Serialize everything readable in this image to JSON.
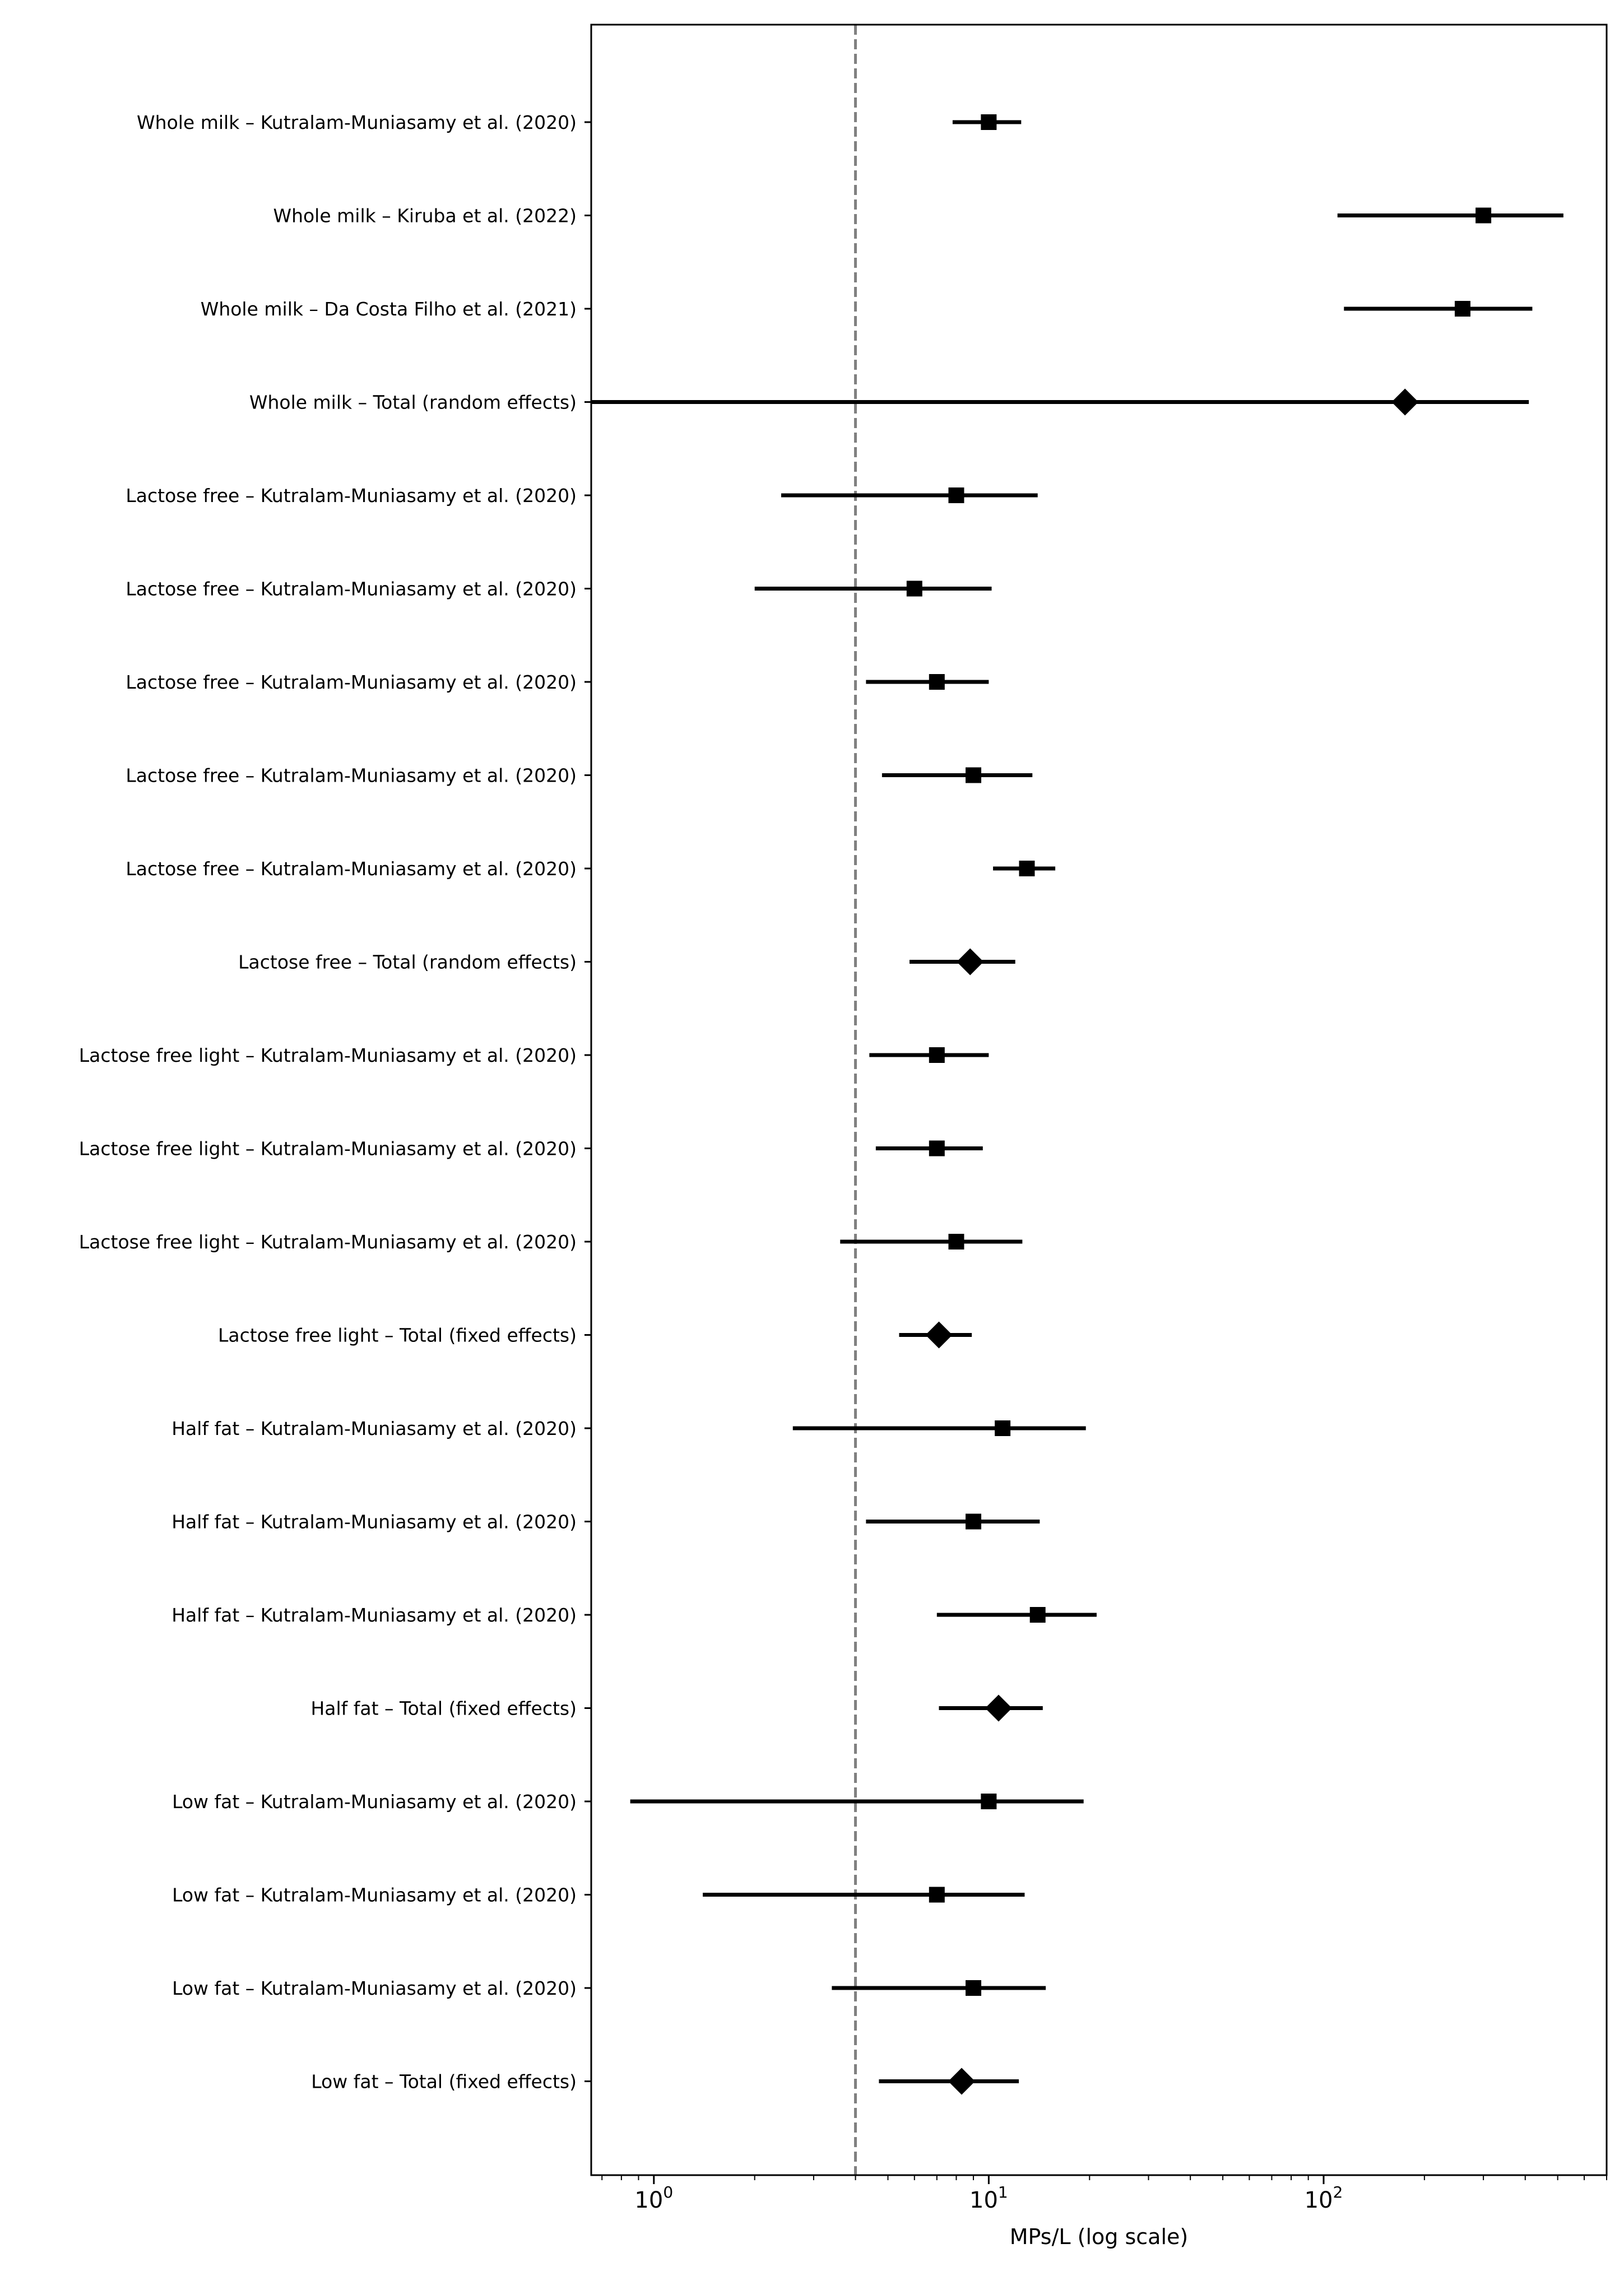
{
  "chart_data": {
    "type": "forest",
    "xlabel": "MPs/L (log scale)",
    "xscale": "log",
    "xlim": [
      0.65,
      700
    ],
    "xticks": [
      {
        "value": 1,
        "label_base": "10",
        "label_exp": "0"
      },
      {
        "value": 10,
        "label_base": "10",
        "label_exp": "1"
      },
      {
        "value": 100,
        "label_base": "10",
        "label_exp": "2"
      }
    ],
    "reference_line": {
      "value": 4.0,
      "style": "dashed",
      "color": "#808080"
    },
    "grid": false,
    "legend": "none",
    "rows": [
      {
        "label": "Whole milk – Kutralam-Muniasamy et al. (2020)",
        "kind": "study",
        "estimate": 10.0,
        "ci": [
          7.8,
          12.5
        ]
      },
      {
        "label": "Whole milk – Kiruba et al. (2022)",
        "kind": "study",
        "estimate": 300.0,
        "ci": [
          110,
          520
        ]
      },
      {
        "label": "Whole milk – Da Costa Filho et al. (2021)",
        "kind": "study",
        "estimate": 260.0,
        "ci": [
          115,
          420
        ]
      },
      {
        "label": "Whole milk – Total (random effects)",
        "kind": "total",
        "estimate": 175.0,
        "ci": [
          0.6,
          410
        ]
      },
      {
        "label": "Lactose free – Kutralam-Muniasamy et al. (2020)",
        "kind": "study",
        "estimate": 8.0,
        "ci": [
          2.4,
          14
        ]
      },
      {
        "label": "Lactose free – Kutralam-Muniasamy et al. (2020)",
        "kind": "study",
        "estimate": 6.0,
        "ci": [
          2.0,
          10.2
        ]
      },
      {
        "label": "Lactose free – Kutralam-Muniasamy et al. (2020)",
        "kind": "study",
        "estimate": 7.0,
        "ci": [
          4.3,
          10
        ]
      },
      {
        "label": "Lactose free – Kutralam-Muniasamy et al. (2020)",
        "kind": "study",
        "estimate": 9.0,
        "ci": [
          4.8,
          13.5
        ]
      },
      {
        "label": "Lactose free – Kutralam-Muniasamy et al. (2020)",
        "kind": "study",
        "estimate": 13.0,
        "ci": [
          10.3,
          15.8
        ]
      },
      {
        "label": "Lactose free – Total (random effects)",
        "kind": "total",
        "estimate": 8.8,
        "ci": [
          5.8,
          12
        ]
      },
      {
        "label": "Lactose free light – Kutralam-Muniasamy et al. (2020)",
        "kind": "study",
        "estimate": 7.0,
        "ci": [
          4.4,
          10
        ]
      },
      {
        "label": "Lactose free light – Kutralam-Muniasamy et al. (2020)",
        "kind": "study",
        "estimate": 7.0,
        "ci": [
          4.6,
          9.6
        ]
      },
      {
        "label": "Lactose free light – Kutralam-Muniasamy et al. (2020)",
        "kind": "study",
        "estimate": 8.0,
        "ci": [
          3.6,
          12.6
        ]
      },
      {
        "label": "Lactose free light – Total (fixed effects)",
        "kind": "total",
        "estimate": 7.1,
        "ci": [
          5.4,
          8.9
        ]
      },
      {
        "label": "Half fat – Kutralam-Muniasamy et al. (2020)",
        "kind": "study",
        "estimate": 11.0,
        "ci": [
          2.6,
          19.5
        ]
      },
      {
        "label": "Half fat – Kutralam-Muniasamy et al. (2020)",
        "kind": "study",
        "estimate": 9.0,
        "ci": [
          4.3,
          14.2
        ]
      },
      {
        "label": "Half fat – Kutralam-Muniasamy et al. (2020)",
        "kind": "study",
        "estimate": 14.0,
        "ci": [
          7.0,
          21
        ]
      },
      {
        "label": "Half fat – Total (fixed effects)",
        "kind": "total",
        "estimate": 10.7,
        "ci": [
          7.1,
          14.5
        ]
      },
      {
        "label": "Low fat – Kutralam-Muniasamy et al. (2020)",
        "kind": "study",
        "estimate": 10.0,
        "ci": [
          0.85,
          19.2
        ]
      },
      {
        "label": "Low fat – Kutralam-Muniasamy et al. (2020)",
        "kind": "study",
        "estimate": 7.0,
        "ci": [
          1.4,
          12.8
        ]
      },
      {
        "label": "Low fat – Kutralam-Muniasamy et al. (2020)",
        "kind": "study",
        "estimate": 9.0,
        "ci": [
          3.4,
          14.8
        ]
      },
      {
        "label": "Low fat – Total (fixed effects)",
        "kind": "total",
        "estimate": 8.3,
        "ci": [
          4.7,
          12.3
        ]
      }
    ]
  }
}
